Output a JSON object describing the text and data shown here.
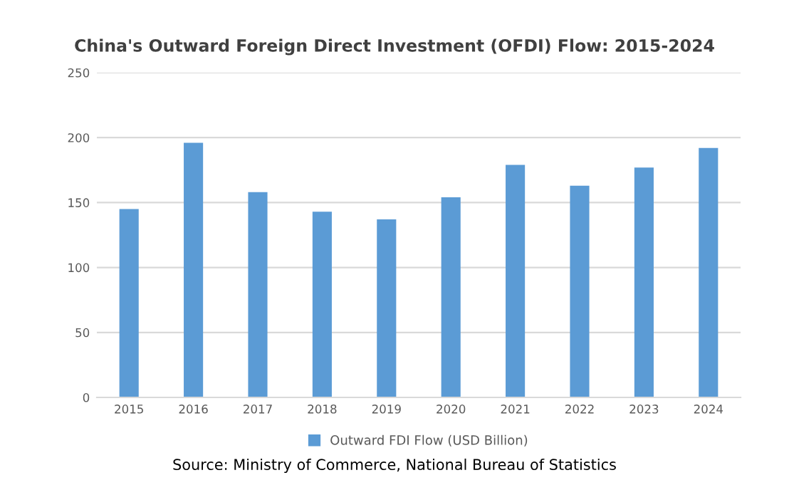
{
  "chart_data": {
    "type": "bar",
    "title": "China's Outward Foreign Direct Investment (OFDI) Flow: 2015-2024",
    "categories": [
      "2015",
      "2016",
      "2017",
      "2018",
      "2019",
      "2020",
      "2021",
      "2022",
      "2023",
      "2024"
    ],
    "series": [
      {
        "name": "Outward FDI Flow (USD Billion)",
        "color": "#5b9bd5",
        "values": [
          145,
          196,
          158,
          143,
          137,
          154,
          179,
          163,
          177,
          192
        ]
      }
    ],
    "ylim": [
      0,
      250
    ],
    "yticks": [
      0,
      50,
      100,
      150,
      200,
      250
    ],
    "grid": "y",
    "legend": "bottom",
    "annotations": [
      "Source: Ministry of Commerce, National Bureau of Statistics"
    ]
  }
}
